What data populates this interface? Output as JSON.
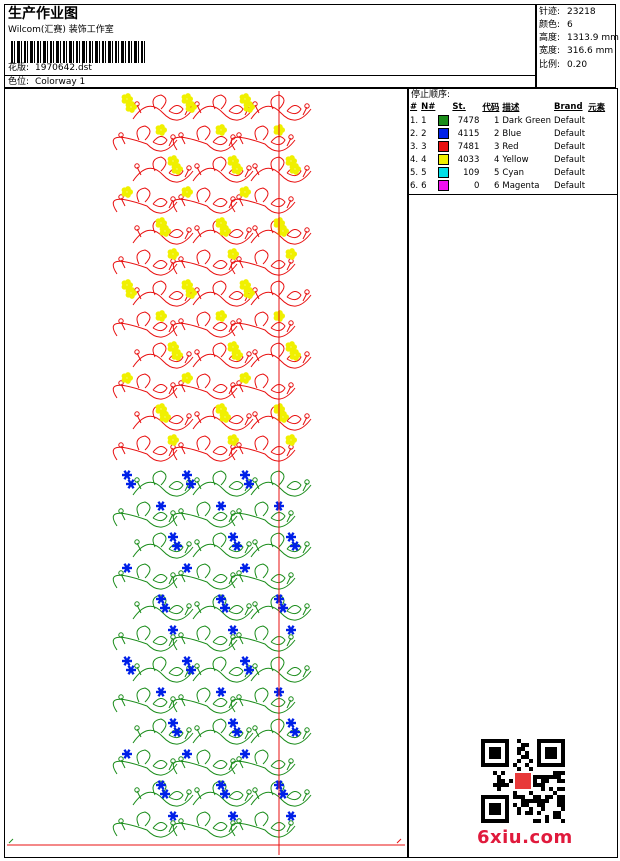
{
  "header": {
    "title": "生产作业图",
    "company": "Wilcom(汇赛) 装饰工作室",
    "design_label": "花版:",
    "design_value": "1970642.dst",
    "colorway_label": "色位:",
    "colorway_value": "Colorway 1"
  },
  "stats": [
    {
      "label": "针迹:",
      "value": "23218"
    },
    {
      "label": "颜色:",
      "value": "6"
    },
    {
      "label": "高度:",
      "value": "1313.9 mm"
    },
    {
      "label": "宽度:",
      "value": "316.6 mm"
    },
    {
      "label": "比例:",
      "value": "0.20"
    }
  ],
  "stop_sequence": {
    "title": "停止顺序:",
    "columns": [
      "#",
      "N#",
      "St.",
      "代码",
      "描述",
      "Brand",
      "元素"
    ],
    "rows": [
      {
        "idx": "1.",
        "n": "1",
        "color": "#1a8c1a",
        "stitches": "7478",
        "code": "1",
        "desc": "Dark Green",
        "brand": "Default"
      },
      {
        "idx": "2.",
        "n": "2",
        "color": "#0020e8",
        "stitches": "4115",
        "code": "2",
        "desc": "Blue",
        "brand": "Default"
      },
      {
        "idx": "3.",
        "n": "3",
        "color": "#e81010",
        "stitches": "7481",
        "code": "3",
        "desc": "Red",
        "brand": "Default"
      },
      {
        "idx": "4.",
        "n": "4",
        "color": "#f0f000",
        "stitches": "4033",
        "code": "4",
        "desc": "Yellow",
        "brand": "Default"
      },
      {
        "idx": "5.",
        "n": "5",
        "color": "#00e0e8",
        "stitches": "109",
        "code": "5",
        "desc": "Cyan",
        "brand": "Default"
      },
      {
        "idx": "6.",
        "n": "6",
        "color": "#f010f0",
        "stitches": "0",
        "code": "6",
        "desc": "Magenta",
        "brand": "Default"
      }
    ]
  },
  "watermark": {
    "logo_text": "6xiu.com"
  },
  "colors": {
    "vine_top": "#e81010",
    "flower_top": "#f0f000",
    "vine_bottom": "#1a8c1a",
    "flower_bottom": "#0020e8",
    "guide_line": "#e81010"
  }
}
